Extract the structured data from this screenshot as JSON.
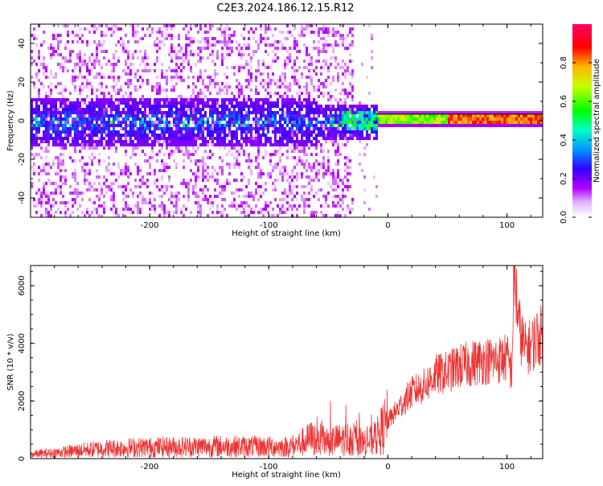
{
  "title": "C2E3.2024.186.12.15.R12",
  "chart_data": [
    {
      "type": "heatmap",
      "xlabel": "Height of straight line (km)",
      "ylabel": "Frequency (Hz)",
      "xlim": [
        -300,
        130
      ],
      "ylim": [
        -50,
        50
      ],
      "xticks": [
        -200,
        -100,
        0,
        100
      ],
      "xtick_labels": [
        "-200",
        "-100",
        "0",
        "100"
      ],
      "yticks": [
        -40,
        -20,
        0,
        20,
        40
      ],
      "ytick_labels": [
        "-40",
        "-20",
        "0",
        "20",
        "40"
      ],
      "colorbar": {
        "label": "Normalized spectral amplitude",
        "range": [
          0,
          1
        ],
        "ticks": [
          0.0,
          0.2,
          0.4,
          0.6,
          0.8
        ],
        "tick_labels": [
          "0.0",
          "0.2",
          "0.4",
          "0.6",
          "0.8"
        ],
        "colormap": [
          "#ffffff",
          "#b400ff",
          "#3200ff",
          "#0096ff",
          "#00ffc8",
          "#00ff00",
          "#c8ff00",
          "#ffb400",
          "#ff0000",
          "#ff0064"
        ]
      },
      "features": [
        {
          "name": "noise band",
          "x_range": [
            -300,
            -10
          ],
          "freq_center": 0,
          "freq_halfwidth": 8,
          "amplitude": 0.12
        },
        {
          "name": "scatter",
          "x_range": [
            -300,
            -30
          ],
          "freq_range": [
            -50,
            50
          ],
          "amplitude": 0.03
        },
        {
          "name": "tone",
          "x_range": [
            -30,
            130
          ],
          "freq_center": 1.5,
          "amplitude": 0.85
        }
      ]
    },
    {
      "type": "line",
      "xlabel": "Height of straight line (km)",
      "ylabel": "SNR (10 * v/v)",
      "xlim": [
        -300,
        130
      ],
      "ylim": [
        0,
        6700
      ],
      "xticks": [
        -200,
        -100,
        0,
        100
      ],
      "xtick_labels": [
        "-200",
        "-100",
        "0",
        "100"
      ],
      "yticks": [
        0,
        2000,
        4000,
        6000
      ],
      "ytick_labels": [
        "0",
        "2000",
        "4000",
        "6000"
      ],
      "color": "#ee3333",
      "series": [
        {
          "x": [
            -300,
            -280,
            -260,
            -240,
            -220,
            -200,
            -180,
            -160,
            -140,
            -120,
            -100,
            -85,
            -75,
            -65,
            -50,
            -40,
            -30,
            -20,
            -10,
            0,
            10,
            20,
            30,
            40,
            50,
            60,
            70,
            80,
            90,
            100,
            104,
            106,
            110,
            115,
            120,
            125,
            130
          ],
          "y": [
            150,
            200,
            280,
            350,
            380,
            400,
            410,
            420,
            430,
            420,
            420,
            400,
            500,
            700,
            600,
            650,
            700,
            500,
            700,
            1300,
            1800,
            2300,
            2500,
            2900,
            3000,
            3200,
            3300,
            3400,
            3400,
            3500,
            3000,
            6600,
            4600,
            3800,
            3900,
            4200,
            4300
          ]
        }
      ]
    }
  ]
}
